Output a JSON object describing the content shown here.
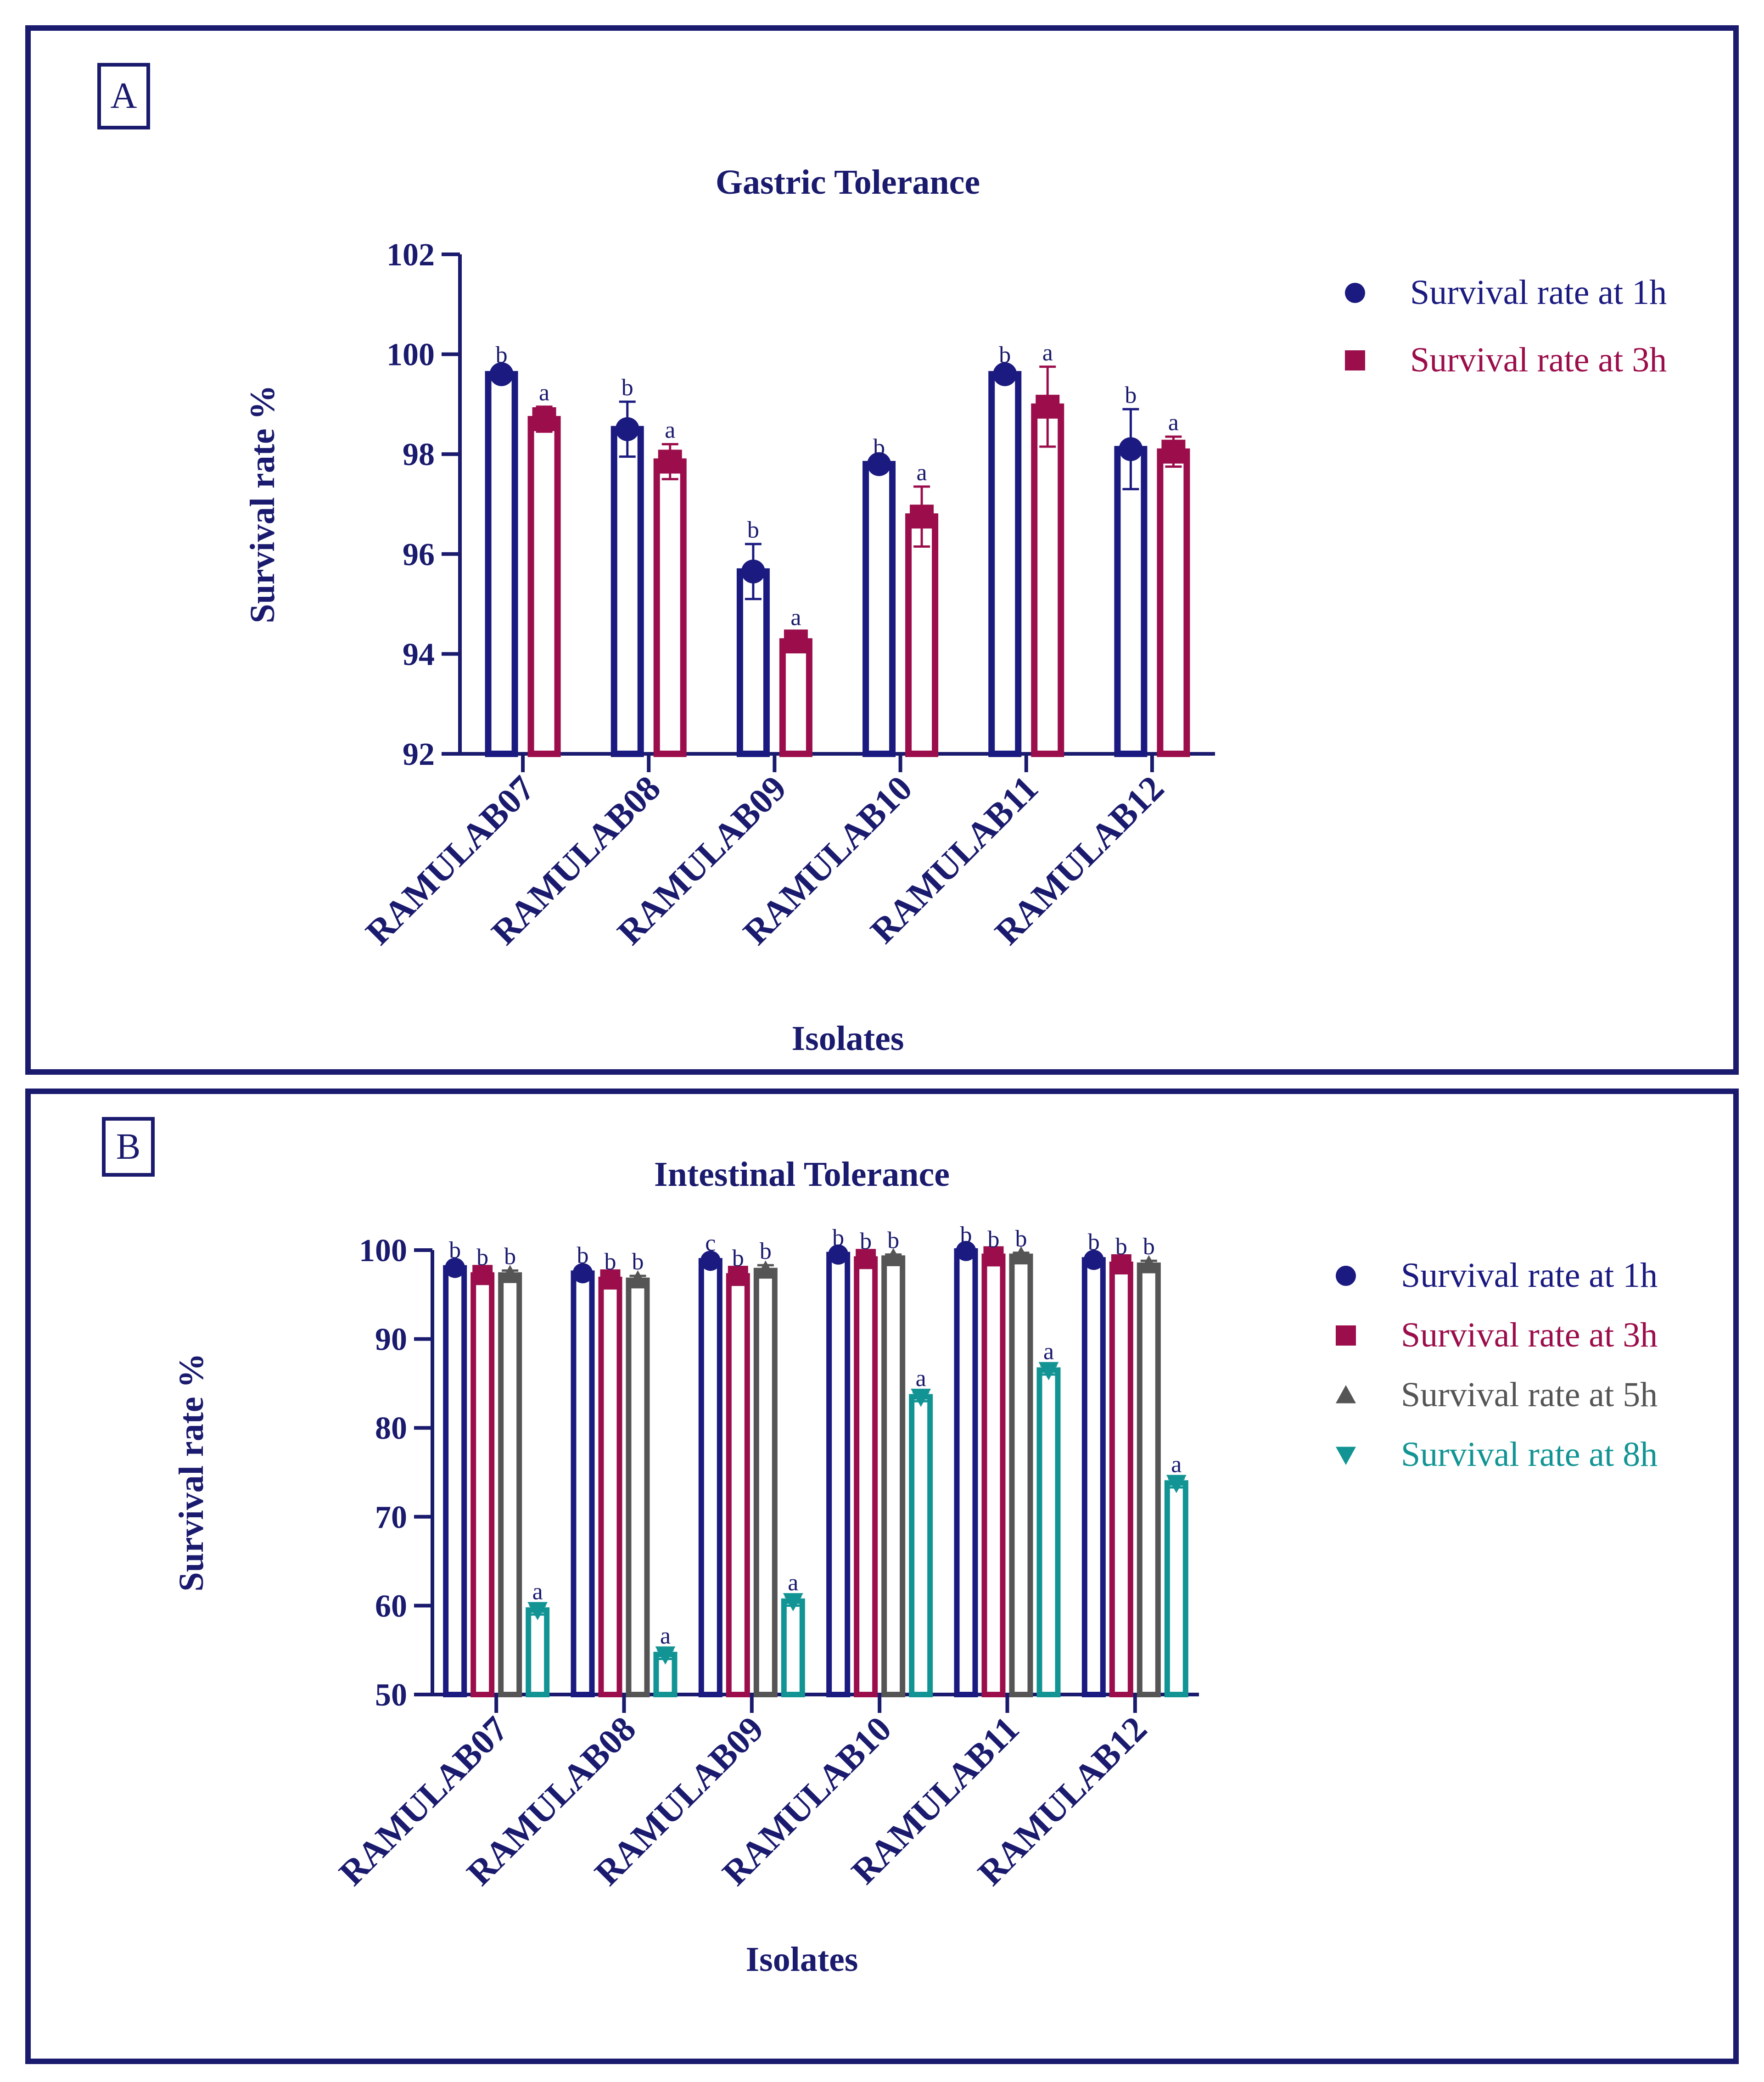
{
  "panels": {
    "A": {
      "letter": "A"
    },
    "B": {
      "letter": "B"
    }
  },
  "chart_data": [
    {
      "type": "bar",
      "title": "Gastric Tolerance",
      "xlabel": "Isolates",
      "ylabel": "Survival rate %",
      "ylim": [
        92,
        102
      ],
      "yticks": [
        92,
        94,
        96,
        98,
        100,
        102
      ],
      "categories": [
        "RAMULAB07",
        "RAMULAB08",
        "RAMULAB09",
        "RAMULAB10",
        "RAMULAB11",
        "RAMULAB12"
      ],
      "legend_position": "top-right",
      "series": [
        {
          "name": "Survival rate at 1h",
          "color": "#1a1a80",
          "marker": "circle",
          "values": [
            99.6,
            98.5,
            95.65,
            97.8,
            99.6,
            98.1
          ],
          "errors": [
            0.1,
            0.55,
            0.55,
            0.05,
            0.1,
            0.8
          ],
          "letters": [
            "b",
            "b",
            "b",
            "b",
            "b",
            "b"
          ]
        },
        {
          "name": "Survival rate at 3h",
          "color": "#9b0e4b",
          "marker": "square",
          "values": [
            98.7,
            97.85,
            94.25,
            96.75,
            98.95,
            98.05
          ],
          "errors": [
            0.25,
            0.35,
            0.2,
            0.6,
            0.8,
            0.3
          ],
          "letters": [
            "a",
            "a",
            "a",
            "a",
            "a",
            "a"
          ]
        }
      ]
    },
    {
      "type": "bar",
      "title": "Intestinal Tolerance",
      "xlabel": "Isolates",
      "ylabel": "Survival rate %",
      "ylim": [
        50,
        100
      ],
      "yticks": [
        50,
        60,
        70,
        80,
        90,
        100
      ],
      "categories": [
        "RAMULAB07",
        "RAMULAB08",
        "RAMULAB09",
        "RAMULAB10",
        "RAMULAB11",
        "RAMULAB12"
      ],
      "legend_position": "top-right",
      "series": [
        {
          "name": "Survival rate  at 1h",
          "color": "#1a1a80",
          "marker": "circle",
          "values": [
            98.0,
            97.4,
            98.8,
            99.5,
            99.9,
            98.9
          ],
          "errors": [
            0.4,
            0.4,
            0.4,
            0.3,
            0.2,
            0.4
          ],
          "letters": [
            "b",
            "b",
            "c",
            "b",
            "b",
            "b"
          ]
        },
        {
          "name": "Survival rate at 3h",
          "color": "#9b0e4b",
          "marker": "square",
          "values": [
            97.2,
            96.7,
            97.1,
            99.0,
            99.3,
            98.4
          ],
          "errors": [
            0.4,
            0.4,
            0.4,
            0.4,
            0.3,
            0.4
          ],
          "letters": [
            "b",
            "b",
            "b",
            "b",
            "b",
            "b"
          ]
        },
        {
          "name": "Survival rate at 5h",
          "color": "#555555",
          "marker": "triangle-up",
          "values": [
            97.2,
            96.6,
            97.7,
            99.1,
            99.3,
            98.3
          ],
          "errors": [
            0.5,
            0.5,
            0.6,
            0.4,
            0.4,
            0.5
          ],
          "letters": [
            "b",
            "b",
            "b",
            "b",
            "b",
            "b"
          ]
        },
        {
          "name": "Survival rate at 8h",
          "color": "#139494",
          "marker": "triangle-down",
          "values": [
            59.5,
            54.5,
            60.5,
            83.5,
            86.5,
            73.8
          ],
          "errors": [
            0.5,
            0.5,
            0.5,
            0.5,
            0.5,
            0.5
          ],
          "letters": [
            "a",
            "a",
            "a",
            "a",
            "a",
            "a"
          ]
        }
      ]
    }
  ]
}
